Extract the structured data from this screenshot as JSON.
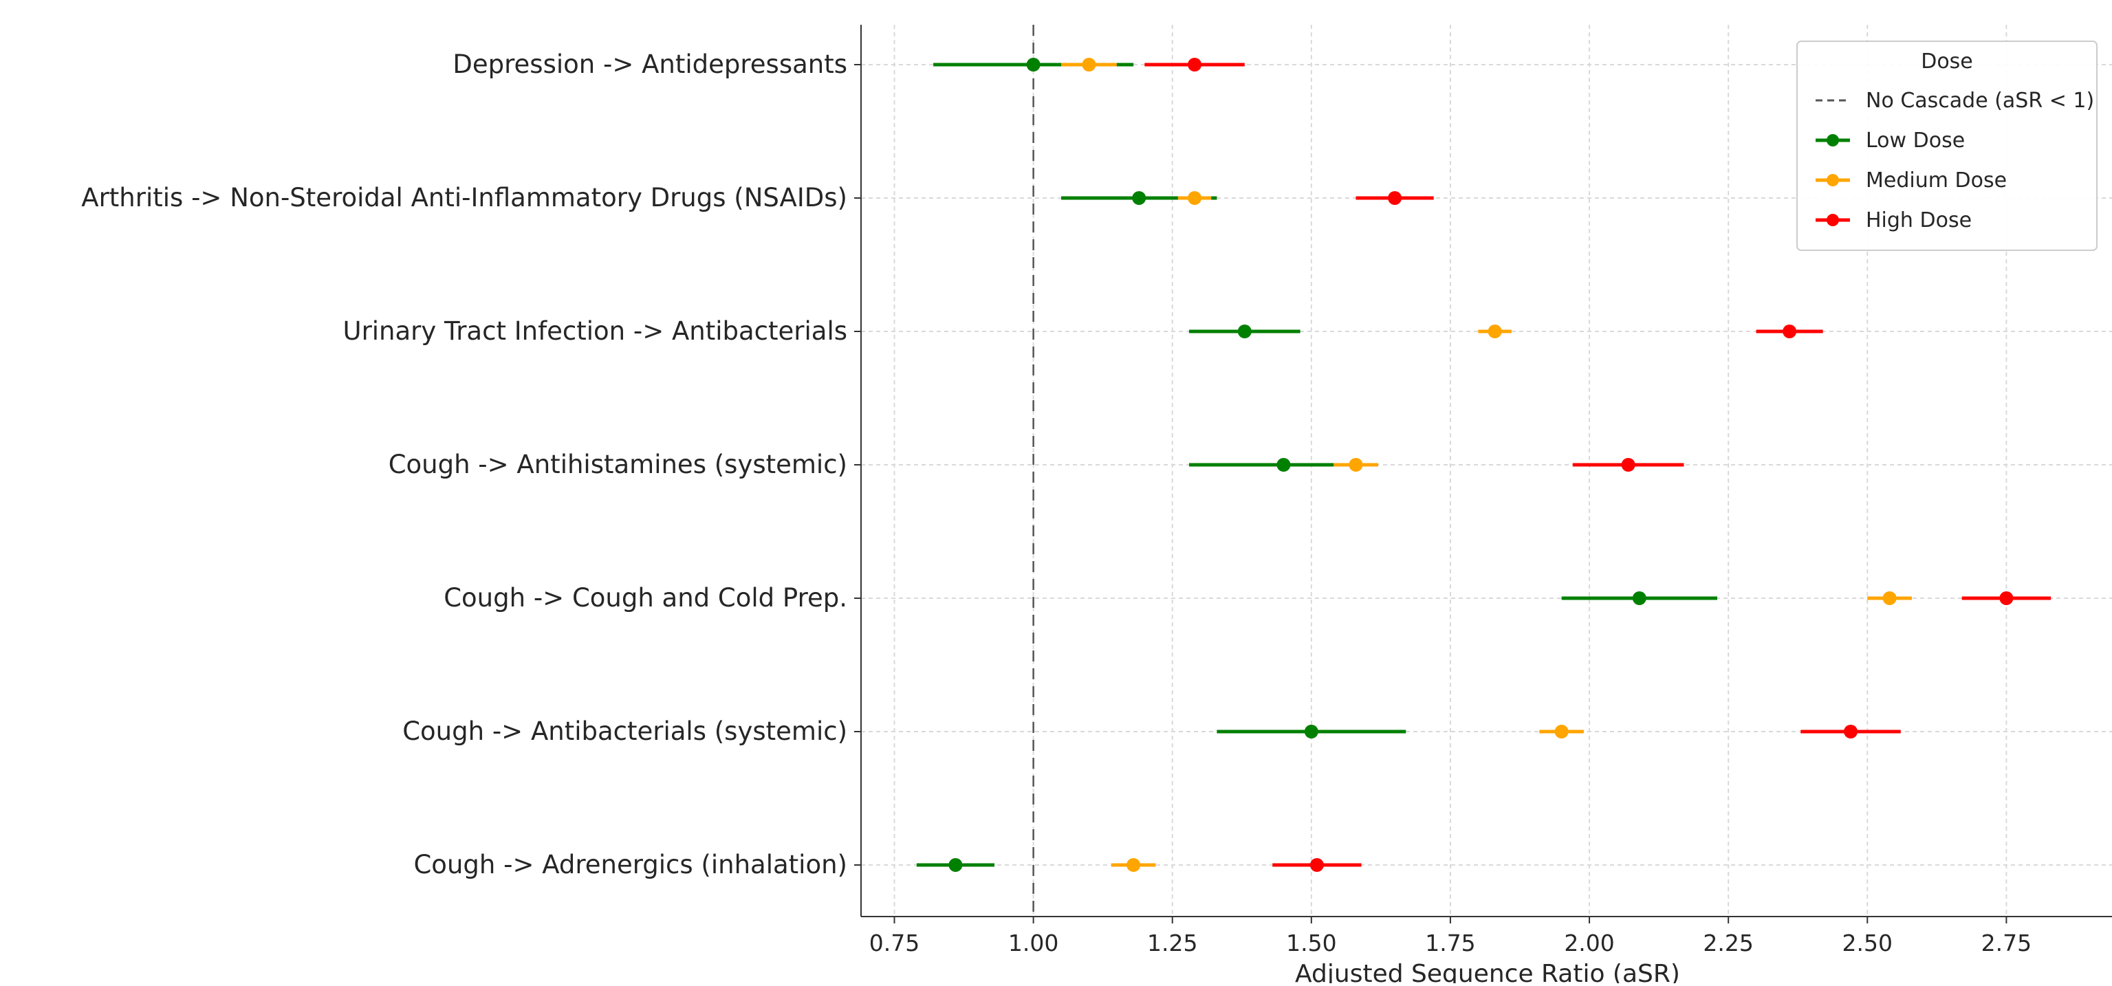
{
  "chart_data": {
    "type": "scatter",
    "title": "",
    "xlabel": "Adjusted Sequence Ratio (aSR)",
    "ylabel": "",
    "xlim": [
      0.69,
      2.94
    ],
    "xticks": [
      0.75,
      1.0,
      1.25,
      1.5,
      1.75,
      2.0,
      2.25,
      2.5,
      2.75
    ],
    "xtick_labels": [
      "0.75",
      "1.00",
      "1.25",
      "1.50",
      "1.75",
      "2.00",
      "2.25",
      "2.50",
      "2.75"
    ],
    "grid": true,
    "reference_line": {
      "x": 1.0,
      "label": "No Cascade (aSR < 1)",
      "style": "dashed",
      "color": "#555555"
    },
    "categories": [
      "Depression -> Antidepressants",
      "Arthritis -> Non-Steroidal Anti-Inflammatory Drugs (NSAIDs)",
      "Urinary Tract Infection -> Antibacterials",
      "Cough -> Antihistamines (systemic)",
      "Cough -> Cough and Cold Prep.",
      "Cough -> Antibacterials (systemic)",
      "Cough -> Adrenergics (inhalation)"
    ],
    "series": [
      {
        "name": "Low Dose",
        "color": "#008000",
        "values": [
          1.0,
          1.19,
          1.38,
          1.45,
          2.09,
          1.5,
          0.86
        ],
        "ci_low": [
          0.82,
          1.05,
          1.28,
          1.28,
          1.95,
          1.33,
          0.79
        ],
        "ci_high": [
          1.18,
          1.33,
          1.48,
          1.62,
          2.23,
          1.67,
          0.93
        ]
      },
      {
        "name": "Medium Dose",
        "color": "#FFA500",
        "values": [
          1.1,
          1.29,
          1.83,
          1.58,
          2.54,
          1.95,
          1.18
        ],
        "ci_low": [
          1.05,
          1.26,
          1.8,
          1.54,
          2.5,
          1.91,
          1.14
        ],
        "ci_high": [
          1.15,
          1.32,
          1.86,
          1.62,
          2.58,
          1.99,
          1.22
        ]
      },
      {
        "name": "High Dose",
        "color": "#FF0000",
        "values": [
          1.29,
          1.65,
          2.36,
          2.07,
          2.75,
          2.47,
          1.51
        ],
        "ci_low": [
          1.2,
          1.58,
          2.3,
          1.97,
          2.67,
          2.38,
          1.43
        ],
        "ci_high": [
          1.38,
          1.72,
          2.42,
          2.17,
          2.83,
          2.56,
          1.59
        ]
      }
    ],
    "legend": {
      "title": "Dose",
      "placement": "top-right",
      "entries": [
        "No Cascade (aSR < 1)",
        "Low Dose",
        "Medium Dose",
        "High Dose"
      ]
    }
  }
}
